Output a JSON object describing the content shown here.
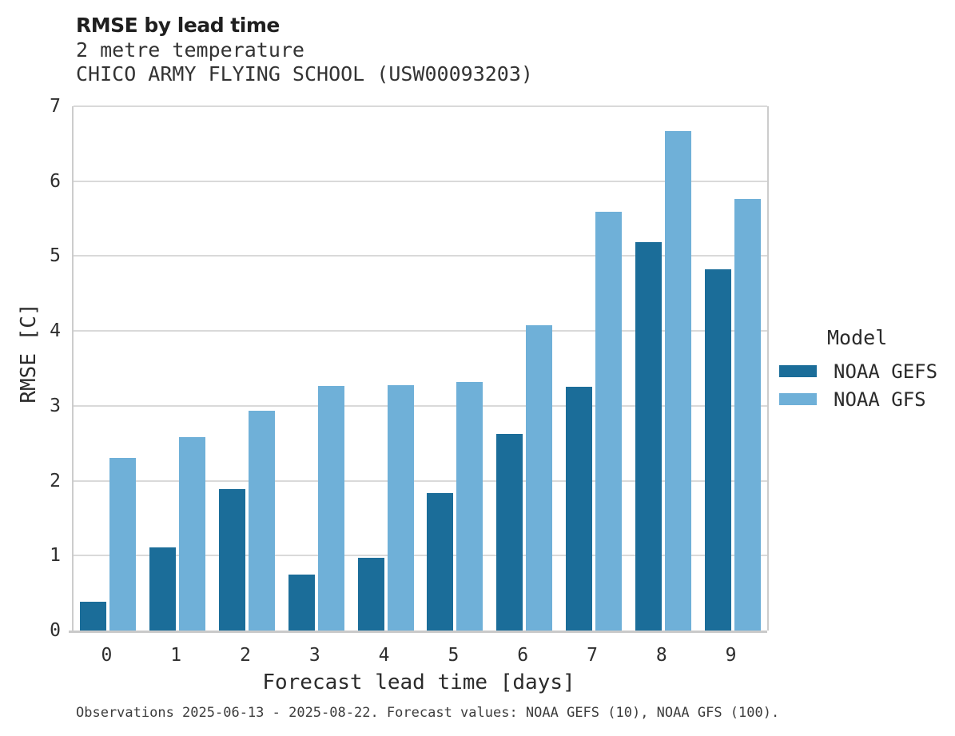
{
  "header": {
    "title": "RMSE by lead time",
    "subtitle": "2 metre temperature",
    "station": "CHICO ARMY FLYING SCHOOL (USW00093203)"
  },
  "legend": {
    "title": "Model",
    "entries": [
      {
        "label": "NOAA GEFS",
        "color": "#1b6d99"
      },
      {
        "label": "NOAA GFS",
        "color": "#6fb0d8"
      }
    ]
  },
  "footer": {
    "note": "Observations 2025-06-13 - 2025-08-22. Forecast values: NOAA GEFS (10), NOAA GFS (100)."
  },
  "colors": {
    "gefs_dark_blue": "#1b6d99",
    "gfs_light_blue": "#6fb0d8",
    "gridline": "#d9d9d9",
    "axis": "#c9c9c9"
  },
  "chart_data": {
    "type": "bar",
    "title": "RMSE by lead time",
    "subtitle": "2 metre temperature",
    "station": "CHICO ARMY FLYING SCHOOL (USW00093203)",
    "xlabel": "Forecast lead time [days]",
    "ylabel": "RMSE [C]",
    "categories": [
      "0",
      "1",
      "2",
      "3",
      "4",
      "5",
      "6",
      "7",
      "8",
      "9"
    ],
    "series": [
      {
        "name": "NOAA GEFS",
        "color": "#1b6d99",
        "values": [
          0.38,
          1.11,
          1.89,
          0.75,
          0.97,
          1.84,
          2.63,
          3.26,
          5.19,
          4.82
        ]
      },
      {
        "name": "NOAA GFS",
        "color": "#6fb0d8",
        "values": [
          2.31,
          2.58,
          2.93,
          3.27,
          3.28,
          3.32,
          4.08,
          5.59,
          6.67,
          5.76
        ]
      }
    ],
    "ylim": [
      0,
      7
    ],
    "yticks": [
      0,
      1,
      2,
      3,
      4,
      5,
      6,
      7
    ],
    "grid": true,
    "legend_title": "Model",
    "legend_position": "right",
    "footnote": "Observations 2025-06-13 - 2025-08-22. Forecast values: NOAA GEFS (10), NOAA GFS (100)."
  }
}
